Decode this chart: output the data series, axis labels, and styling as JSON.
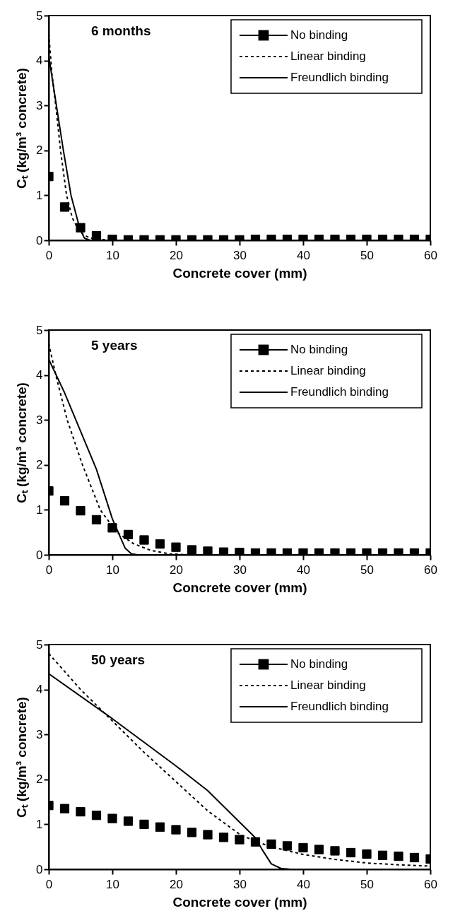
{
  "chart_data": [
    {
      "type": "line",
      "title": "6 months",
      "xlabel": "Concrete cover (mm)",
      "ylabel": "Cₜ  (kg/m³ concrete)",
      "xlim": [
        0,
        60
      ],
      "ylim": [
        0,
        5
      ],
      "xticks": [
        0,
        10,
        20,
        30,
        40,
        50,
        60
      ],
      "yticks": [
        0,
        1,
        2,
        3,
        4,
        5
      ],
      "grid": false,
      "legend": "top right",
      "series": [
        {
          "name": "No binding",
          "type": "scatter",
          "marker": "square",
          "color": "#000000",
          "x": [
            0,
            2.5,
            5,
            7.5,
            10,
            12.5,
            15,
            17.5,
            20,
            22.5,
            25,
            27.5,
            30,
            32.5,
            35,
            37.5,
            40,
            42.5,
            45,
            47.5,
            50,
            52.5,
            55,
            57.5,
            60
          ],
          "values": [
            1.42,
            0.74,
            0.28,
            0.1,
            0.02,
            0.01,
            0.01,
            0.01,
            0.01,
            0.01,
            0.01,
            0.01,
            0.01,
            0.02,
            0.02,
            0.02,
            0.02,
            0.02,
            0.02,
            0.02,
            0.02,
            0.02,
            0.02,
            0.02,
            0.02
          ]
        },
        {
          "name": "Linear binding",
          "color": "#000000",
          "line_style": "dashed",
          "x": [
            0,
            0.5,
            1.1,
            1.85,
            2.8,
            3.7,
            4.6,
            5.5,
            6.5,
            8,
            10,
            60
          ],
          "values": [
            4.6,
            3.7,
            3,
            2,
            1,
            0.5,
            0.25,
            0.12,
            0.05,
            0.02,
            0,
            0
          ]
        },
        {
          "name": "Freundlich binding",
          "color": "#000000",
          "line_style": "solid",
          "x": [
            0,
            1.2,
            2.3,
            3.5,
            4.9,
            5.6,
            6.5,
            60
          ],
          "values": [
            4.1,
            3,
            2,
            1,
            0.25,
            0.05,
            0,
            0
          ]
        }
      ]
    },
    {
      "type": "line",
      "title": "5 years",
      "xlabel": "Concrete cover (mm)",
      "ylabel": "Cₜ  (kg/m³ concrete)",
      "xlim": [
        0,
        60
      ],
      "ylim": [
        0,
        5
      ],
      "xticks": [
        0,
        10,
        20,
        30,
        40,
        50,
        60
      ],
      "yticks": [
        0,
        1,
        2,
        3,
        4,
        5
      ],
      "grid": false,
      "legend": "top right",
      "series": [
        {
          "name": "No binding",
          "type": "scatter",
          "marker": "square",
          "color": "#000000",
          "x": [
            0,
            2.5,
            5,
            7.5,
            10,
            12.5,
            15,
            17.5,
            20,
            22.5,
            25,
            27.5,
            30,
            32.5,
            35,
            37.5,
            40,
            42.5,
            45,
            47.5,
            50,
            52.5,
            55,
            57.5,
            60
          ],
          "values": [
            1.42,
            1.2,
            0.98,
            0.78,
            0.6,
            0.45,
            0.33,
            0.24,
            0.17,
            0.11,
            0.08,
            0.06,
            0.05,
            0.04,
            0.04,
            0.04,
            0.04,
            0.04,
            0.04,
            0.04,
            0.04,
            0.04,
            0.04,
            0.04,
            0.04
          ]
        },
        {
          "name": "Linear binding",
          "color": "#000000",
          "line_style": "dashed",
          "x": [
            0,
            1.1,
            2.9,
            5.3,
            8.1,
            10.7,
            13.3,
            16,
            19,
            22,
            60
          ],
          "values": [
            4.7,
            4,
            3,
            2,
            1,
            0.5,
            0.25,
            0.1,
            0.02,
            0,
            0
          ]
        },
        {
          "name": "Freundlich binding",
          "color": "#000000",
          "line_style": "solid",
          "x": [
            0,
            2.5,
            5,
            7.5,
            10,
            12,
            13,
            14,
            60
          ],
          "values": [
            4.35,
            3.6,
            2.75,
            1.9,
            0.8,
            0.15,
            0.02,
            0,
            0
          ]
        }
      ]
    },
    {
      "type": "line",
      "title": "50 years",
      "xlabel": "Concrete cover (mm)",
      "ylabel": "Cₜ  (kg/m³ concrete)",
      "xlim": [
        0,
        60
      ],
      "ylim": [
        0,
        5
      ],
      "xticks": [
        0,
        10,
        20,
        30,
        40,
        50,
        60
      ],
      "yticks": [
        0,
        1,
        2,
        3,
        4,
        5
      ],
      "grid": false,
      "legend": "top right",
      "series": [
        {
          "name": "No binding",
          "type": "scatter",
          "marker": "square",
          "color": "#000000",
          "x": [
            0,
            2.5,
            5,
            7.5,
            10,
            12.5,
            15,
            17.5,
            20,
            22.5,
            25,
            27.5,
            30,
            32.5,
            35,
            37.5,
            40,
            42.5,
            45,
            47.5,
            50,
            52.5,
            55,
            57.5,
            60
          ],
          "values": [
            1.42,
            1.35,
            1.28,
            1.2,
            1.13,
            1.07,
            1.0,
            0.94,
            0.88,
            0.82,
            0.77,
            0.71,
            0.66,
            0.61,
            0.56,
            0.52,
            0.48,
            0.44,
            0.41,
            0.37,
            0.34,
            0.31,
            0.29,
            0.26,
            0.23
          ]
        },
        {
          "name": "Linear binding",
          "color": "#000000",
          "line_style": "dashed",
          "x": [
            0,
            5,
            10,
            15,
            20,
            25,
            30,
            32.5,
            35,
            40,
            45,
            50,
            55,
            60
          ],
          "values": [
            4.8,
            4.0,
            3.3,
            2.6,
            1.95,
            1.3,
            0.78,
            0.62,
            0.5,
            0.33,
            0.22,
            0.14,
            0.1,
            0.07
          ]
        },
        {
          "name": "Freundlich binding",
          "color": "#000000",
          "line_style": "solid",
          "x": [
            0,
            10,
            20,
            25,
            30,
            32.5,
            33.5,
            35,
            36.5,
            38,
            60
          ],
          "values": [
            4.35,
            3.35,
            2.3,
            1.75,
            1.05,
            0.7,
            0.45,
            0.12,
            0.02,
            0,
            0
          ]
        }
      ]
    }
  ]
}
